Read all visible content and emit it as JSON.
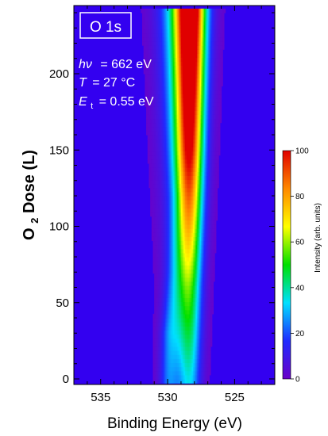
{
  "chart_data": {
    "type": "heatmap",
    "title": "O 1s",
    "annotations": [
      {
        "name": "photon-energy",
        "symbol": "hν",
        "value": "= 662 eV"
      },
      {
        "name": "temperature",
        "symbol": "T",
        "value": "= 27 °C"
      },
      {
        "name": "translational-energy",
        "symbol": "E",
        "subscript": "t",
        "value": "= 0.55 eV"
      }
    ],
    "xlabel": "Binding Energy (eV)",
    "ylabel": {
      "prefix": "O",
      "subscript": "2",
      "suffix": " Dose (L)"
    },
    "x_reversed": true,
    "xlim": [
      537,
      522
    ],
    "ylim": [
      0,
      240
    ],
    "x_ticks": [
      535,
      530,
      525
    ],
    "y_ticks": [
      0,
      50,
      100,
      150,
      200
    ],
    "colorbar": {
      "label": "Intensity (arb. units)",
      "range": [
        0,
        100
      ],
      "ticks": [
        0,
        20,
        40,
        60,
        80,
        100
      ],
      "colormap": [
        "#6a00c8",
        "#1f2aff",
        "#00e0ff",
        "#00e000",
        "#ffff00",
        "#ff8800",
        "#e00000"
      ]
    },
    "peaks": [
      {
        "name": "lower-binding-energy-peak",
        "center_eV": [
          [
            0,
            528.4
          ],
          [
            60,
            528.4
          ],
          [
            240,
            528.3
          ]
        ],
        "width_eV": [
          [
            0,
            0.6
          ],
          [
            240,
            0.75
          ]
        ],
        "amplitude": [
          [
            0,
            30
          ],
          [
            60,
            45
          ],
          [
            150,
            82
          ],
          [
            240,
            100
          ]
        ]
      },
      {
        "name": "higher-binding-energy-peak",
        "center_eV": [
          [
            0,
            529.9
          ],
          [
            30,
            529.8
          ],
          [
            70,
            529.5
          ],
          [
            120,
            529.3
          ],
          [
            240,
            529.3
          ]
        ],
        "width_eV": [
          [
            0,
            0.5
          ],
          [
            240,
            0.6
          ]
        ],
        "amplitude": [
          [
            0,
            22
          ],
          [
            30,
            22
          ],
          [
            70,
            10
          ],
          [
            120,
            0
          ],
          [
            240,
            0
          ]
        ]
      },
      {
        "name": "broad-background",
        "center_eV": [
          [
            0,
            528.9
          ],
          [
            240,
            528.9
          ]
        ],
        "width_eV": [
          [
            0,
            0.9
          ],
          [
            240,
            1.2
          ]
        ],
        "amplitude": [
          [
            0,
            5
          ],
          [
            240,
            38
          ]
        ]
      }
    ]
  }
}
